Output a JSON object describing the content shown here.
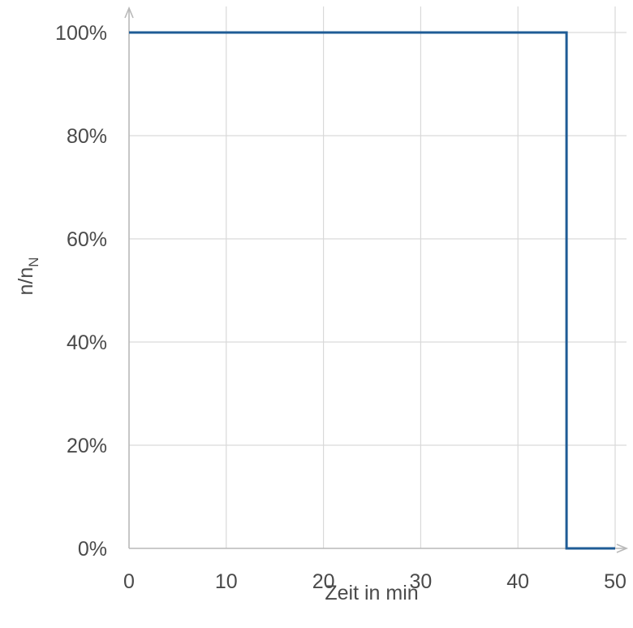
{
  "chart_data": {
    "type": "line",
    "title": "",
    "xlabel": "Zeit in min",
    "ylabel": "n/n",
    "ylabel_subscript": "N",
    "xlim": [
      0,
      50
    ],
    "ylim": [
      0,
      100
    ],
    "x_ticks": [
      0,
      10,
      20,
      30,
      40,
      50
    ],
    "x_tick_labels": [
      "0",
      "10",
      "20",
      "30",
      "40",
      "50"
    ],
    "y_ticks": [
      0,
      20,
      40,
      60,
      80,
      100
    ],
    "y_tick_labels": [
      "0%",
      "20%",
      "40%",
      "60%",
      "80%",
      "100%"
    ],
    "y_unit": "%",
    "grid": true,
    "legend": "none",
    "series": [
      {
        "color": "#1f5c96",
        "step": true,
        "points": [
          {
            "x": 0,
            "y": 100
          },
          {
            "x": 45,
            "y": 100
          },
          {
            "x": 45,
            "y": 0
          },
          {
            "x": 50,
            "y": 0
          }
        ]
      }
    ]
  }
}
